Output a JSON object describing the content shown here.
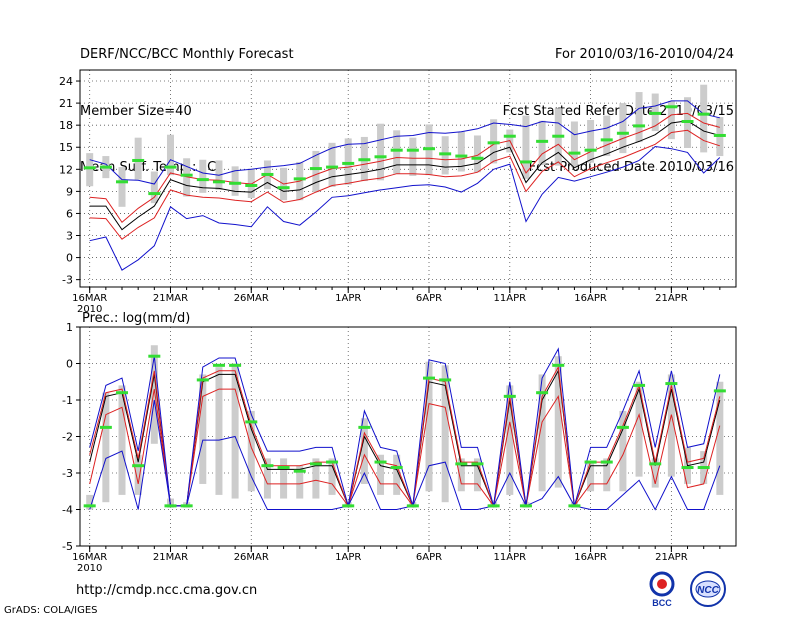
{
  "header": {
    "left": [
      "DERF/NCC/BCC Monthly Forecast",
      "Member Size=40",
      "Mean Surf. Temp.: °C"
    ],
    "right": [
      "For 2010/03/16-2010/04/24",
      "Fcst Started Refer Date 2010/03/15",
      "Fcst Produced Date 2010/03/16"
    ]
  },
  "precip_label": "Prec.: log(mm/d)",
  "footer": {
    "url": "http://cmdp.ncc.cma.gov.cn",
    "credit": "GrADS: COLA/IGES"
  },
  "logos": {
    "bcc": "BCC",
    "ncc": "NCC"
  },
  "colors": {
    "ens_mean": "#000000",
    "spread": "#dd2222",
    "envelope": "#1111cc",
    "obs": "#33dd33",
    "box": "#cccccc",
    "grid": "#555555"
  },
  "chart_data": [
    {
      "type": "line",
      "title": "Mean Surf. Temp.: °C",
      "x_ticks": [
        "16MAR",
        "21MAR",
        "26MAR",
        "1APR",
        "6APR",
        "11APR",
        "16APR",
        "21APR"
      ],
      "x_tick_day": [
        0,
        5,
        10,
        16,
        21,
        26,
        31,
        36
      ],
      "x_sub_label": "2010",
      "y_ticks": [
        -3,
        0,
        3,
        6,
        9,
        12,
        15,
        18,
        21,
        24
      ],
      "ylim": [
        -4,
        25.5
      ],
      "xlim": [
        -0.6,
        40
      ],
      "days": [
        0,
        1,
        2,
        3,
        4,
        5,
        6,
        7,
        8,
        9,
        10,
        11,
        12,
        13,
        14,
        15,
        16,
        17,
        18,
        19,
        20,
        21,
        22,
        23,
        24,
        25,
        26,
        27,
        28,
        29,
        30,
        31,
        32,
        33,
        34,
        35,
        36,
        37,
        38,
        39
      ],
      "series": [
        {
          "name": "ens-mean",
          "values": [
            7,
            7,
            3.8,
            5.5,
            7,
            10.6,
            9.8,
            9.5,
            9.4,
            9,
            8.9,
            10.2,
            9,
            9.2,
            10.2,
            11,
            11.3,
            11.6,
            12,
            12.6,
            12.6,
            12.6,
            12.3,
            12.4,
            12.8,
            14.3,
            15,
            10.2,
            12.9,
            14.3,
            12.2,
            13.3,
            14.1,
            15,
            15.8,
            16.7,
            18.3,
            18.6,
            17.2,
            16.6
          ]
        },
        {
          "name": "spread-upper",
          "values": [
            8.2,
            8,
            4.8,
            6.7,
            8.2,
            11.5,
            11,
            10.6,
            10.5,
            10.2,
            10,
            11.3,
            10,
            10.4,
            11.3,
            12.1,
            12.3,
            12.7,
            13.1,
            13.6,
            13.5,
            13.5,
            13.3,
            13.4,
            13.9,
            15.4,
            15.9,
            11.5,
            14.1,
            15.4,
            13.3,
            14.4,
            15.3,
            16.2,
            17,
            17.9,
            19.4,
            19.6,
            18.3,
            17.7
          ]
        },
        {
          "name": "spread-lower",
          "values": [
            5.4,
            5.3,
            2.5,
            4.1,
            5.4,
            9.2,
            8.5,
            8.2,
            8.1,
            7.8,
            7.6,
            8.9,
            7.5,
            7.9,
            8.9,
            9.8,
            10.1,
            10.5,
            10.8,
            11.4,
            11.4,
            11.3,
            11,
            11.1,
            11.6,
            13.1,
            13.8,
            9,
            11.7,
            13,
            11,
            12.1,
            12.9,
            13.6,
            14.5,
            15.4,
            17,
            17.3,
            15.9,
            15.2
          ]
        },
        {
          "name": "max-envelope",
          "values": [
            13.3,
            12.7,
            10.6,
            10.5,
            10,
            13.3,
            12.4,
            11.5,
            11.2,
            11.8,
            12,
            12.3,
            12.5,
            12.8,
            13.9,
            14.9,
            15.4,
            15.5,
            16,
            16.5,
            16.6,
            17,
            16.9,
            17.1,
            17.5,
            18.3,
            18.1,
            17.8,
            18.5,
            18.3,
            16.7,
            17.2,
            17.6,
            18.5,
            20.3,
            20.6,
            21.3,
            21.3,
            19.5,
            19
          ]
        },
        {
          "name": "min-envelope",
          "values": [
            2.3,
            2.8,
            -1.7,
            -0.3,
            1.6,
            6.9,
            5.3,
            5.7,
            4.7,
            4.5,
            4.2,
            6.9,
            4.9,
            4.4,
            6.2,
            8.2,
            8.4,
            8.8,
            9.2,
            9.5,
            9.8,
            9.9,
            9.6,
            8.9,
            10.1,
            12,
            12.7,
            4.9,
            8.6,
            10.9,
            10.4,
            11,
            11.6,
            12.3,
            13.2,
            15.1,
            14.8,
            14.3,
            11.5,
            13.6
          ]
        }
      ],
      "observed": [
        12.2,
        12.3,
        10.3,
        13.2,
        8.7,
        12.3,
        11.2,
        10.6,
        10.3,
        10.1,
        9.8,
        11.3,
        9.5,
        10.7,
        12.1,
        12.3,
        12.8,
        13.3,
        13.7,
        14.6,
        14.6,
        14.8,
        14.1,
        13.8,
        13.5,
        15.6,
        16.5,
        13,
        15.8,
        16.5,
        14.2,
        14.6,
        16,
        16.9,
        17.9,
        19.6,
        20.5,
        18.5,
        19.5,
        16.6
      ],
      "box_high": [
        14.2,
        13.8,
        12.3,
        16.3,
        11.7,
        16.7,
        13.5,
        13.3,
        13.2,
        12.4,
        12.1,
        13.2,
        12.2,
        13,
        14.5,
        15.6,
        16.2,
        16.4,
        18.2,
        17.3,
        16.3,
        18.1,
        16.5,
        17.1,
        16.6,
        18.8,
        17.4,
        19.3,
        18.6,
        20.3,
        18.5,
        18.7,
        19.3,
        21,
        22.5,
        22.3,
        21.3,
        21.8,
        23.5,
        19.1
      ],
      "box_low": [
        9.7,
        10.8,
        6.9,
        10.6,
        7.4,
        11.2,
        8.3,
        8.8,
        9.2,
        8.4,
        8.1,
        9.3,
        7.8,
        7.8,
        8.9,
        9.6,
        9.9,
        10.4,
        10.5,
        11.4,
        11.1,
        11.2,
        11.3,
        11.7,
        11.6,
        12.8,
        14.3,
        10.7,
        12.6,
        12.5,
        12.3,
        12.9,
        13.8,
        14.2,
        15.7,
        17.2,
        16.1,
        14.9,
        14.3,
        13.8
      ]
    },
    {
      "type": "line",
      "title": "Prec.: log(mm/d)",
      "x_ticks": [
        "16MAR",
        "21MAR",
        "26MAR",
        "1APR",
        "6APR",
        "11APR",
        "16APR",
        "21APR"
      ],
      "x_tick_day": [
        0,
        5,
        10,
        16,
        21,
        26,
        31,
        36
      ],
      "x_sub_label": "2010",
      "y_ticks": [
        -5,
        -4,
        -3,
        -2,
        -1,
        0,
        1
      ],
      "ylim": [
        -5,
        1
      ],
      "xlim": [
        -0.6,
        40
      ],
      "days": [
        0,
        1,
        2,
        3,
        4,
        5,
        6,
        7,
        8,
        9,
        10,
        11,
        12,
        13,
        14,
        15,
        16,
        17,
        18,
        19,
        20,
        21,
        22,
        23,
        24,
        25,
        26,
        27,
        28,
        29,
        30,
        31,
        32,
        33,
        34,
        35,
        36,
        37,
        38,
        39
      ],
      "series": [
        {
          "name": "ens-mean",
          "values": [
            -2.7,
            -0.9,
            -0.8,
            -2.7,
            -0.3,
            -3.9,
            -3.9,
            -0.5,
            -0.3,
            -0.3,
            -1.8,
            -2.9,
            -2.9,
            -2.9,
            -2.8,
            -2.8,
            -3.9,
            -2,
            -2.8,
            -2.9,
            -3.9,
            -0.5,
            -0.6,
            -2.8,
            -2.8,
            -3.9,
            -1,
            -3.9,
            -1,
            -0.2,
            -3.9,
            -2.8,
            -2.8,
            -1.8,
            -0.7,
            -2.8,
            -0.7,
            -2.8,
            -2.7,
            -1
          ]
        },
        {
          "name": "spread-upper",
          "values": [
            -2.5,
            -0.8,
            -0.7,
            -2.6,
            -0.2,
            -3.9,
            -3.9,
            -0.4,
            -0.2,
            -0.2,
            -1.7,
            -2.8,
            -2.8,
            -2.8,
            -2.7,
            -2.7,
            -3.9,
            -1.9,
            -2.7,
            -2.8,
            -3.9,
            -0.4,
            -0.5,
            -2.7,
            -2.7,
            -3.9,
            -0.9,
            -3.9,
            -0.9,
            -0.1,
            -3.9,
            -2.7,
            -2.7,
            -1.7,
            -0.6,
            -2.7,
            -0.6,
            -2.7,
            -2.6,
            -0.9
          ]
        },
        {
          "name": "spread-lower",
          "values": [
            -3.3,
            -1.4,
            -1.2,
            -3.3,
            -0.7,
            -3.9,
            -3.9,
            -0.9,
            -0.7,
            -0.7,
            -2.3,
            -3.3,
            -3.3,
            -3.3,
            -3.2,
            -3.3,
            -3.9,
            -2.5,
            -3.3,
            -3.3,
            -3.9,
            -1.1,
            -1.2,
            -3.3,
            -3.3,
            -3.9,
            -1.6,
            -3.9,
            -1.6,
            -0.9,
            -3.9,
            -3.3,
            -3.3,
            -2.5,
            -1.4,
            -3.3,
            -1.4,
            -3.4,
            -3.3,
            -1.7
          ]
        },
        {
          "name": "max-envelope",
          "values": [
            -2.3,
            -0.6,
            -0.4,
            -2.4,
            0.2,
            -3.9,
            -3.9,
            -0.1,
            0.15,
            0.15,
            -1.4,
            -2.4,
            -2.4,
            -2.4,
            -2.3,
            -2.3,
            -3.9,
            -1.3,
            -2.3,
            -2.4,
            -3.9,
            0.1,
            0,
            -2.3,
            -2.3,
            -3.9,
            -0.5,
            -3.9,
            -0.4,
            0.4,
            -3.9,
            -2.3,
            -2.3,
            -1.3,
            -0.2,
            -2.3,
            -0.2,
            -2.3,
            -2.2,
            -0.3
          ]
        },
        {
          "name": "min-envelope",
          "values": [
            -4,
            -2.6,
            -2.4,
            -4,
            -1,
            -3.9,
            -3.9,
            -2.1,
            -2.1,
            -2,
            -3.1,
            -4,
            -4,
            -4,
            -4,
            -4,
            -3.9,
            -3,
            -4,
            -4,
            -3.9,
            -2.8,
            -2.7,
            -4,
            -4,
            -3.9,
            -3,
            -3.9,
            -3.7,
            -3.1,
            -3.9,
            -4,
            -4,
            -3.6,
            -3.2,
            -4,
            -3.1,
            -4,
            -4,
            -2.8
          ]
        }
      ],
      "observed": [
        -3.9,
        -1.75,
        -0.8,
        -2.8,
        0.2,
        -3.9,
        -3.9,
        -0.45,
        -0.05,
        -0.05,
        -1.6,
        -2.8,
        -2.85,
        -2.95,
        -2.75,
        -2.7,
        -3.9,
        -1.75,
        -2.7,
        -2.85,
        -3.9,
        -0.4,
        -0.45,
        -2.75,
        -2.75,
        -3.9,
        -0.9,
        -3.9,
        -0.8,
        -0.05,
        -3.9,
        -2.7,
        -2.7,
        -1.75,
        -0.6,
        -2.75,
        -0.55,
        -2.85,
        -2.85,
        -0.75
      ],
      "box_high": [
        -3.6,
        -0.8,
        -0.6,
        -2.5,
        0.5,
        -3.7,
        -3.8,
        -0.3,
        -0.1,
        0,
        -1.3,
        -2.6,
        -2.6,
        -2.8,
        -2.6,
        -2.6,
        -3.8,
        -1.5,
        -2.5,
        -2.5,
        -3.8,
        0.05,
        -0.05,
        -2.6,
        -2.6,
        -3.8,
        -0.6,
        -3.8,
        -0.3,
        0.2,
        -3.8,
        -2.7,
        -2.6,
        -1.3,
        -0.5,
        -2.6,
        -0.3,
        -2.3,
        -2.4,
        -0.5
      ],
      "box_low": [
        -4,
        -3.8,
        -3.6,
        -3.6,
        -2.2,
        -3.95,
        -3.95,
        -3.3,
        -3.6,
        -3.7,
        -3.5,
        -3.7,
        -3.7,
        -3.7,
        -3.7,
        -3.6,
        -3.95,
        -3.3,
        -3.6,
        -3.6,
        -3.95,
        -3.5,
        -3.8,
        -3.5,
        -3.5,
        -3.95,
        -3.6,
        -3.95,
        -3.5,
        -3.4,
        -3.95,
        -3.5,
        -3.5,
        -3.5,
        -3.1,
        -3.4,
        -3.1,
        -3.3,
        -3.3,
        -3.6
      ]
    }
  ]
}
